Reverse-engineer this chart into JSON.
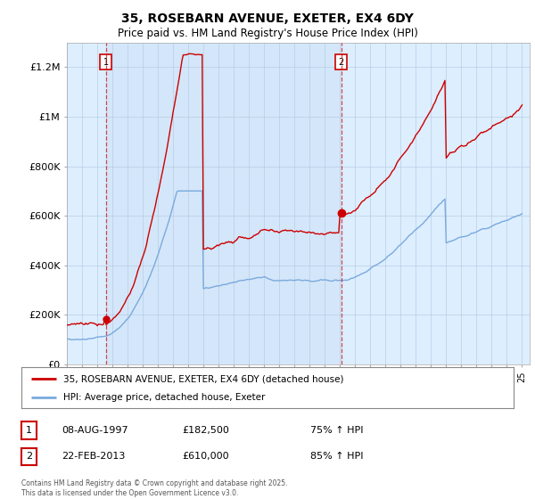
{
  "title": "35, ROSEBARN AVENUE, EXETER, EX4 6DY",
  "subtitle": "Price paid vs. HM Land Registry's House Price Index (HPI)",
  "legend_line1": "35, ROSEBARN AVENUE, EXETER, EX4 6DY (detached house)",
  "legend_line2": "HPI: Average price, detached house, Exeter",
  "annotation1_date": "08-AUG-1997",
  "annotation1_price": "£182,500",
  "annotation1_hpi": "75% ↑ HPI",
  "annotation2_date": "22-FEB-2013",
  "annotation2_price": "£610,000",
  "annotation2_hpi": "85% ↑ HPI",
  "copyright_text": "Contains HM Land Registry data © Crown copyright and database right 2025.\nThis data is licensed under the Open Government Licence v3.0.",
  "line_color_red": "#cc0000",
  "line_color_blue": "#7aaadd",
  "vline_color": "#cc0000",
  "plot_bg_color": "#ddeeff",
  "background_color": "#ffffff",
  "ylim": [
    0,
    1300000
  ],
  "yticks": [
    0,
    200000,
    400000,
    600000,
    800000,
    1000000,
    1200000
  ],
  "ytick_labels": [
    "£0",
    "£200K",
    "£400K",
    "£600K",
    "£800K",
    "£1M",
    "£1.2M"
  ],
  "purchase1_year": 1997.58,
  "purchase1_price": 182500,
  "purchase2_year": 2013.08,
  "purchase2_price": 610000,
  "year_start": 1995,
  "year_end": 2025
}
